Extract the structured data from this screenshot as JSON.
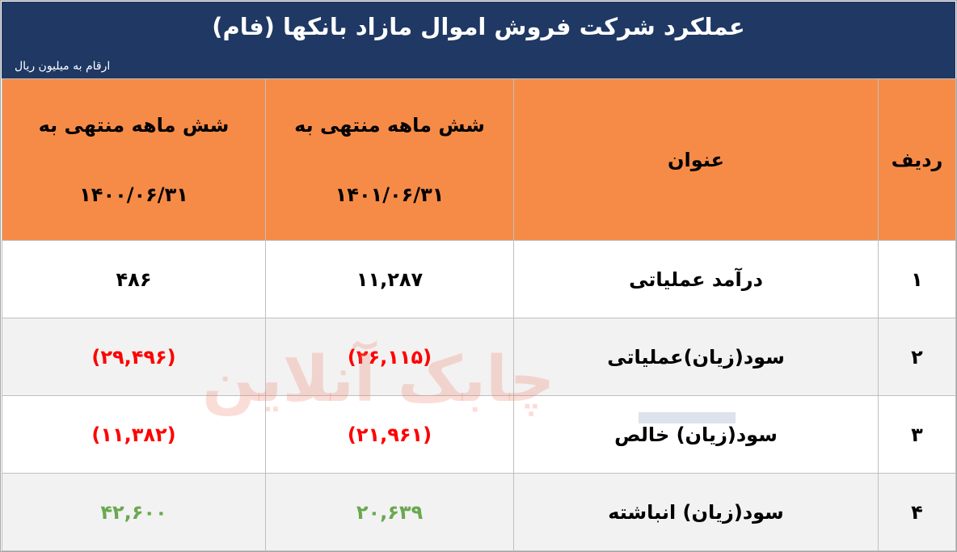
{
  "header": {
    "title": "عملکرد شرکت فروش اموال مازاد بانکها (فام)",
    "unit_note": "ارقام به میلیون ریال"
  },
  "table": {
    "columns": [
      {
        "label": "ردیف"
      },
      {
        "label": "عنوان"
      },
      {
        "label": "شش ماهه منتهی به",
        "date": "۱۴۰۱/۰۶/۳۱"
      },
      {
        "label": "شش ماهه منتهی به",
        "date": "۱۴۰۰/۰۶/۳۱"
      }
    ],
    "rows": [
      {
        "index": "۱",
        "title": "درآمد عملیاتی",
        "v1401": "۱۱,۲۸۷",
        "v1400": "۴۸۶",
        "status": "neutral"
      },
      {
        "index": "۲",
        "title": "سود(زیان)عملیاتی",
        "v1401": "(۲۶,۱۱۵)",
        "v1400": "(۲۹,۴۹۶)",
        "status": "negative"
      },
      {
        "index": "۳",
        "title": "سود(زیان) خالص",
        "v1401": "(۲۱,۹۶۱)",
        "v1400": "(۱۱,۳۸۲)",
        "status": "negative"
      },
      {
        "index": "۴",
        "title": "سود(زیان) انباشته",
        "v1401": "۲۰,۶۳۹",
        "v1400": "۴۲,۶۰۰",
        "status": "positive"
      }
    ]
  },
  "watermark": "چابک آنلاین",
  "colors": {
    "title_bg": "#1f3864",
    "header_bg": "#f68b47",
    "negative": "#ff0000",
    "positive": "#6aa84f",
    "alt_row": "#f2f2f2"
  }
}
